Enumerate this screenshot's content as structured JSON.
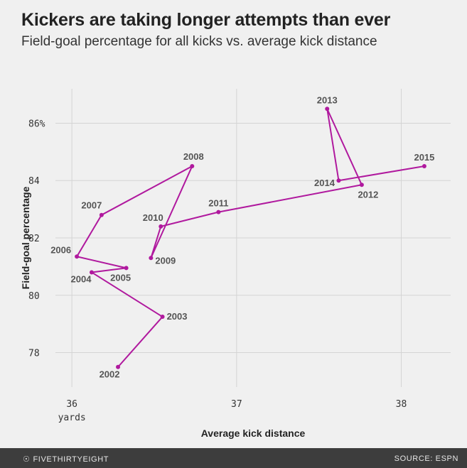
{
  "header": {
    "title": "Kickers are taking longer attempts than ever",
    "subtitle": "Field-goal percentage for all kicks vs. average kick distance"
  },
  "footer": {
    "brand": "FIVETHIRTYEIGHT",
    "brand_icon": "fivethirtyeight-logo-icon",
    "source": "SOURCE: ESPN"
  },
  "colors": {
    "background": "#f0f0f0",
    "series": "#b0199e",
    "grid": "#d4d4d4",
    "footer": "#3d3d3d"
  },
  "chart_data": {
    "type": "line",
    "title": "Kickers are taking longer attempts than ever",
    "subtitle": "Field-goal percentage for all kicks vs. average kick distance",
    "xlabel": "Average kick distance",
    "ylabel": "Field-goal percentage",
    "x_ticks": [
      {
        "value": 36,
        "label": "36",
        "sublabel": "yards"
      },
      {
        "value": 37,
        "label": "37"
      },
      {
        "value": 38,
        "label": "38"
      }
    ],
    "y_ticks": [
      {
        "value": 78,
        "label": "78"
      },
      {
        "value": 80,
        "label": "80"
      },
      {
        "value": 82,
        "label": "82"
      },
      {
        "value": 84,
        "label": "84"
      },
      {
        "value": 86,
        "label": "86%"
      }
    ],
    "xlim": [
      35.9,
      38.3
    ],
    "ylim": [
      76.8,
      87.2
    ],
    "grid": true,
    "legend": "none",
    "series": [
      {
        "points": [
          {
            "year": "2002",
            "x": 36.28,
            "y": 77.5
          },
          {
            "year": "2003",
            "x": 36.55,
            "y": 79.25
          },
          {
            "year": "2004",
            "x": 36.12,
            "y": 80.8
          },
          {
            "year": "2005",
            "x": 36.33,
            "y": 80.95
          },
          {
            "year": "2006",
            "x": 36.03,
            "y": 81.35
          },
          {
            "year": "2007",
            "x": 36.18,
            "y": 82.8
          },
          {
            "year": "2008",
            "x": 36.73,
            "y": 84.5
          },
          {
            "year": "2009",
            "x": 36.48,
            "y": 81.3
          },
          {
            "year": "2010",
            "x": 36.54,
            "y": 82.4
          },
          {
            "year": "2011",
            "x": 36.89,
            "y": 82.9
          },
          {
            "year": "2012",
            "x": 37.76,
            "y": 83.85
          },
          {
            "year": "2013",
            "x": 37.55,
            "y": 86.5
          },
          {
            "year": "2014",
            "x": 37.62,
            "y": 84.0
          },
          {
            "year": "2015",
            "x": 38.14,
            "y": 84.5
          }
        ]
      }
    ]
  }
}
